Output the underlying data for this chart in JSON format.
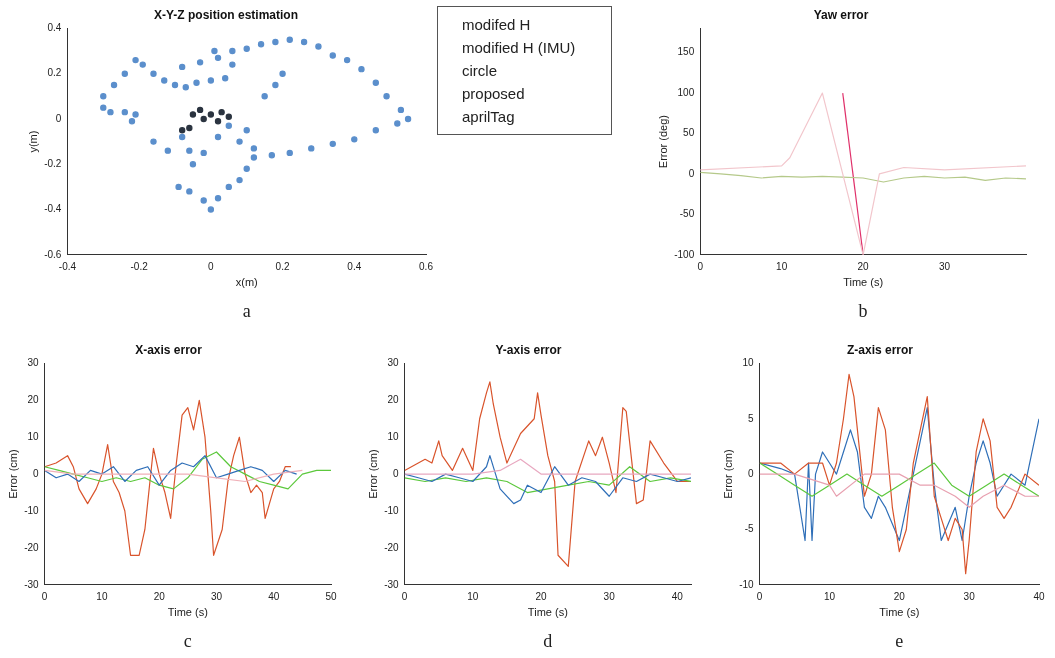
{
  "chart_data": [
    {
      "type": "scatter",
      "title": "X-Y-Z position estimation",
      "xlabel": "x(m)",
      "ylabel": "y(m)",
      "xlim": [
        -0.4,
        0.6
      ],
      "ylim": [
        -0.6,
        0.4
      ],
      "xticks": [
        -0.4,
        -0.2,
        0,
        0.2,
        0.4,
        0.6
      ],
      "yticks": [
        -0.6,
        -0.4,
        -0.2,
        0,
        0.2,
        0.4
      ],
      "marker": "circle",
      "annotations": [
        "a"
      ],
      "series": [
        {
          "color": "#5b8fcc",
          "x": [
            -0.3,
            -0.3,
            -0.27,
            -0.24,
            -0.21,
            -0.19,
            -0.16,
            -0.13,
            -0.1,
            -0.07,
            -0.04,
            0,
            0.04,
            0.06,
            0.02,
            -0.03,
            -0.08,
            0.01,
            0.06,
            0.1,
            0.14,
            0.18,
            0.22,
            0.26,
            0.3,
            0.34,
            0.38,
            0.42,
            0.46,
            0.49,
            0.53,
            0.55,
            0.52,
            0.46,
            0.4,
            0.34,
            0.28,
            0.22,
            0.17,
            0.12,
            0.1,
            0.08,
            0.05,
            0.02,
            0,
            -0.02,
            -0.06,
            -0.09,
            -0.05,
            -0.02,
            -0.06,
            -0.12,
            -0.16,
            -0.08,
            0.02,
            0.08,
            0.12,
            0.15,
            0.18,
            0.2,
            -0.28,
            -0.24,
            -0.21,
            -0.22,
            0.05,
            0.1
          ],
          "values": [
            0.05,
            0.1,
            0.15,
            0.2,
            0.26,
            0.24,
            0.2,
            0.17,
            0.15,
            0.14,
            0.16,
            0.17,
            0.18,
            0.24,
            0.27,
            0.25,
            0.23,
            0.3,
            0.3,
            0.31,
            0.33,
            0.34,
            0.35,
            0.34,
            0.32,
            0.28,
            0.26,
            0.22,
            0.16,
            0.1,
            0.04,
            0,
            -0.02,
            -0.05,
            -0.09,
            -0.11,
            -0.13,
            -0.15,
            -0.16,
            -0.17,
            -0.22,
            -0.27,
            -0.3,
            -0.35,
            -0.4,
            -0.36,
            -0.32,
            -0.3,
            -0.2,
            -0.15,
            -0.14,
            -0.14,
            -0.1,
            -0.08,
            -0.08,
            -0.1,
            -0.13,
            0.1,
            0.15,
            0.2,
            0.03,
            0.03,
            0.02,
            -0.01,
            -0.03,
            -0.05
          ]
        },
        {
          "color": "#2b3440",
          "x": [
            -0.05,
            -0.03,
            0,
            0.03,
            -0.06,
            0.02,
            -0.02,
            0.05,
            -0.08
          ],
          "values": [
            0.02,
            0.04,
            0.02,
            0.03,
            -0.04,
            -0.01,
            0,
            0.01,
            -0.05
          ]
        }
      ]
    },
    {
      "type": "other",
      "annotations": [
        "modifed H",
        "modified H (IMU)",
        "circle",
        "proposed",
        "aprilTag"
      ]
    },
    {
      "type": "line",
      "title": "Yaw error",
      "xlabel": "Time (s)",
      "ylabel": "Error (deg)",
      "xlim": [
        0,
        40
      ],
      "ylim": [
        -100,
        180
      ],
      "xticks": [
        0,
        10,
        20,
        30
      ],
      "yticks": [
        -100,
        -50,
        0,
        50,
        100,
        150
      ],
      "marker": "none",
      "annotations": [
        "b"
      ],
      "series": [
        {
          "color": "#f2c6cc",
          "x": [
            0,
            10,
            11,
            15,
            20,
            22,
            25,
            30,
            40
          ],
          "values": [
            5,
            10,
            20,
            100,
            -100,
            0,
            8,
            5,
            10
          ]
        },
        {
          "color": "#b5c98a",
          "x": [
            0,
            2.5,
            5,
            7.5,
            10,
            12.5,
            15,
            17.5,
            20,
            22.5,
            25,
            27.5,
            30,
            32.5,
            35,
            37.5,
            40
          ],
          "values": [
            2,
            0,
            -2,
            -5,
            -3,
            -4,
            -3,
            -4,
            -5,
            -10,
            -5,
            -3,
            -5,
            -4,
            -8,
            -5,
            -6
          ]
        },
        {
          "color": "#e0306a",
          "x": [
            17.5,
            20
          ],
          "values": [
            100,
            -100
          ]
        }
      ]
    },
    {
      "type": "line",
      "title": "X-axis error",
      "xlabel": "Time (s)",
      "ylabel": "Error (cm)",
      "xlim": [
        0,
        50
      ],
      "ylim": [
        -30,
        30
      ],
      "xticks": [
        0,
        10,
        20,
        30,
        40,
        50
      ],
      "yticks": [
        -30,
        -20,
        -10,
        0,
        10,
        20,
        30
      ],
      "marker": "none",
      "annotations": [
        "c"
      ],
      "series": [
        {
          "color": "#f0b0b8",
          "x": [
            0,
            5,
            10,
            15,
            20,
            25,
            30,
            35,
            40,
            45
          ],
          "values": [
            1,
            0,
            0,
            0,
            0,
            0,
            -1,
            -2,
            0,
            1
          ]
        },
        {
          "color": "#2f6fb8",
          "x": [
            0,
            2,
            4,
            6,
            8,
            10,
            12,
            14,
            16,
            18,
            20,
            22,
            24,
            26,
            28,
            30,
            32,
            34,
            36,
            38,
            40,
            42,
            44
          ],
          "values": [
            1,
            -1,
            0,
            -2,
            1,
            0,
            2,
            -2,
            1,
            2,
            -3,
            1,
            3,
            2,
            5,
            -1,
            0,
            1,
            2,
            1,
            -2,
            1,
            0
          ]
        },
        {
          "color": "#5cc83c",
          "x": [
            0,
            2.5,
            5,
            7.5,
            10,
            12.5,
            15,
            17.5,
            20,
            22.5,
            25,
            27.5,
            30,
            32.5,
            35,
            37.5,
            40,
            42.5,
            45,
            47.5,
            50
          ],
          "values": [
            2,
            1,
            0,
            -1,
            -2,
            -1,
            -2,
            -1,
            -3,
            -4,
            -1,
            4,
            6,
            2,
            0,
            -2,
            -3,
            -4,
            0,
            1,
            1
          ]
        },
        {
          "color": "#d9542c",
          "x": [
            0,
            2,
            4,
            5,
            6,
            7.5,
            9,
            10,
            11,
            12,
            13,
            14,
            15,
            16.5,
            17.5,
            19,
            20,
            21,
            22,
            23,
            24,
            25,
            26,
            27,
            28,
            29,
            29.5,
            31,
            32,
            33,
            34,
            35,
            36,
            37,
            38,
            38.5,
            40,
            41,
            42,
            43
          ],
          "values": [
            2,
            3,
            5,
            2,
            -4,
            -8,
            -4,
            0,
            8,
            -2,
            -5,
            -10,
            -22,
            -22,
            -15,
            7,
            0,
            -5,
            -12,
            3,
            16,
            18,
            12,
            20,
            10,
            -10,
            -22,
            -15,
            -2,
            5,
            10,
            0,
            -5,
            -3,
            -5,
            -12,
            -4,
            -2,
            2,
            2
          ]
        }
      ]
    },
    {
      "type": "line",
      "title": "Y-axis error",
      "xlabel": "Time (s)",
      "ylabel": "Error (cm)",
      "xlim": [
        0,
        42
      ],
      "ylim": [
        -30,
        30
      ],
      "xticks": [
        0,
        10,
        20,
        30,
        40
      ],
      "yticks": [
        -30,
        -20,
        -10,
        0,
        10,
        20,
        30
      ],
      "marker": "none",
      "annotations": [
        "d"
      ],
      "series": [
        {
          "color": "#e8a8c0",
          "x": [
            0,
            5,
            10,
            14,
            17,
            20,
            24,
            30,
            36,
            42
          ],
          "values": [
            0,
            0,
            0,
            1,
            4,
            0,
            0,
            0,
            0,
            0
          ]
        },
        {
          "color": "#2f6fb8",
          "x": [
            0,
            2,
            4,
            6,
            8,
            10,
            12,
            12.5,
            14,
            16,
            17,
            18,
            20,
            22,
            24,
            26,
            28,
            30,
            32,
            34,
            36,
            38,
            40,
            42
          ],
          "values": [
            0,
            -1,
            -2,
            0,
            -1,
            -2,
            2,
            5,
            -4,
            -8,
            -7,
            -3,
            -5,
            2,
            -3,
            -1,
            -2,
            -6,
            -1,
            -2,
            0,
            -1,
            -2,
            -1
          ]
        },
        {
          "color": "#5cc83c",
          "x": [
            0,
            3,
            6,
            9,
            12,
            15,
            18,
            21,
            24,
            27,
            30,
            33,
            36,
            39,
            42
          ],
          "values": [
            -1,
            -2,
            -1,
            -2,
            -1,
            -2,
            -5,
            -4,
            -3,
            -2,
            -3,
            2,
            -2,
            -1,
            -2
          ]
        },
        {
          "color": "#d9542c",
          "x": [
            0,
            3,
            4,
            5,
            5.5,
            7,
            8.5,
            10,
            11,
            12,
            12.5,
            13,
            14,
            15,
            17,
            19,
            19.5,
            20,
            21,
            22,
            22.5,
            24,
            25,
            27,
            28,
            29,
            30,
            31,
            32,
            32.5,
            34,
            35,
            36,
            38,
            40,
            42
          ],
          "values": [
            1,
            4,
            3,
            9,
            5,
            1,
            7,
            1,
            15,
            22,
            25,
            19,
            10,
            3,
            11,
            15,
            22,
            16,
            5,
            -2,
            -22,
            -25,
            -2,
            9,
            5,
            10,
            3,
            -5,
            18,
            17,
            -8,
            -7,
            9,
            3,
            -2,
            -2
          ]
        }
      ]
    },
    {
      "type": "line",
      "title": "Z-axis error",
      "xlabel": "Time (s)",
      "ylabel": "Error (cm)",
      "xlim": [
        0,
        40
      ],
      "ylim": [
        -10,
        10
      ],
      "xticks": [
        0,
        10,
        20,
        30,
        40
      ],
      "yticks": [
        -10,
        -5,
        0,
        5,
        10
      ],
      "marker": "none",
      "annotations": [
        "e"
      ],
      "series": [
        {
          "color": "#e8a0b0",
          "x": [
            0,
            5,
            10,
            11,
            15,
            20,
            23,
            25,
            28,
            30,
            32,
            35,
            38,
            40
          ],
          "values": [
            0,
            0,
            -1,
            -2,
            0,
            0,
            -1,
            -1,
            -2,
            -3,
            -2,
            -1,
            -2,
            -2
          ]
        },
        {
          "color": "#5cc83c",
          "x": [
            0,
            2.5,
            5,
            7.5,
            10,
            12.5,
            15,
            17.5,
            20,
            22.5,
            25,
            27.5,
            30,
            32.5,
            35,
            37.5,
            40
          ],
          "values": [
            1,
            0,
            -1,
            -2,
            -1,
            0,
            -1,
            -2,
            -1,
            0,
            1,
            -1,
            -2,
            -1,
            0,
            -1,
            -2
          ]
        },
        {
          "color": "#d9542c",
          "x": [
            0,
            3,
            5,
            7,
            9,
            10,
            11,
            12,
            12.8,
            13.5,
            14,
            15,
            16,
            17,
            18,
            19,
            20,
            21,
            22,
            24,
            25,
            26,
            27,
            28,
            29,
            29.5,
            30,
            31,
            32,
            33,
            34,
            35,
            36,
            38,
            40
          ],
          "values": [
            1,
            1,
            0,
            1,
            1,
            -1,
            1,
            5,
            9,
            7,
            4,
            -2,
            0,
            6,
            4,
            -3,
            -7,
            -5,
            1,
            7,
            -2,
            -4,
            -6,
            -4,
            -5,
            -9,
            -6,
            2,
            5,
            3,
            -3,
            -4,
            -3,
            0,
            -1
          ]
        },
        {
          "color": "#2f6fb8",
          "x": [
            0,
            3,
            5,
            6.5,
            7,
            7.5,
            8,
            9,
            10,
            11,
            12,
            13,
            14,
            15,
            16,
            17,
            18,
            20,
            22,
            24,
            25,
            26,
            28,
            29,
            30,
            31,
            32,
            33,
            34,
            36,
            38,
            40
          ],
          "values": [
            1,
            0.5,
            0,
            -6,
            1,
            -6,
            0,
            2,
            1,
            0,
            2,
            4,
            2,
            -3,
            -4,
            -2,
            -3,
            -6,
            0,
            6,
            -1,
            -6,
            -3,
            -6,
            -2,
            1,
            3,
            1,
            -2,
            0,
            -1,
            5
          ]
        }
      ]
    }
  ]
}
